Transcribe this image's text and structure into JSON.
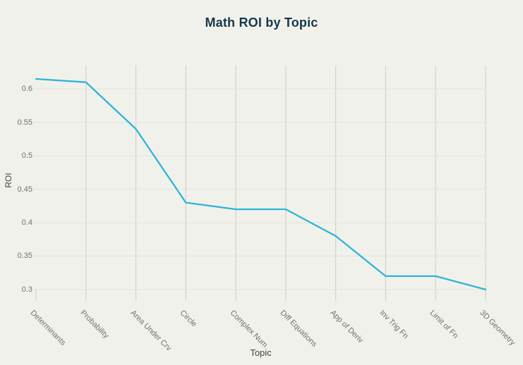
{
  "chart_data": {
    "type": "line",
    "title": "Math ROI by Topic",
    "xlabel": "Topic",
    "ylabel": "ROI",
    "categories": [
      "Determinants",
      "Probability",
      "Area Under Crv",
      "Circle",
      "Complex Num",
      "Diff Equations",
      "App of Deriv",
      "Inv Trig Fn",
      "Limit of Fn",
      "3D Geometry"
    ],
    "values": [
      0.615,
      0.61,
      0.54,
      0.43,
      0.42,
      0.42,
      0.38,
      0.32,
      0.32,
      0.3
    ],
    "yticks": [
      0.3,
      0.35,
      0.4,
      0.45,
      0.5,
      0.55,
      0.6
    ],
    "ylim": [
      0.283,
      0.635
    ],
    "grid": true,
    "legend": false,
    "line_color": "#2cb5d8",
    "background": "#f1f1eb",
    "colors": {
      "title": "#17384c",
      "tick_label": "#6e7276",
      "axis_title": "#3f4449",
      "grid_horizontal": "#e3e3db",
      "grid_vertical": "#cdcdc5"
    }
  }
}
